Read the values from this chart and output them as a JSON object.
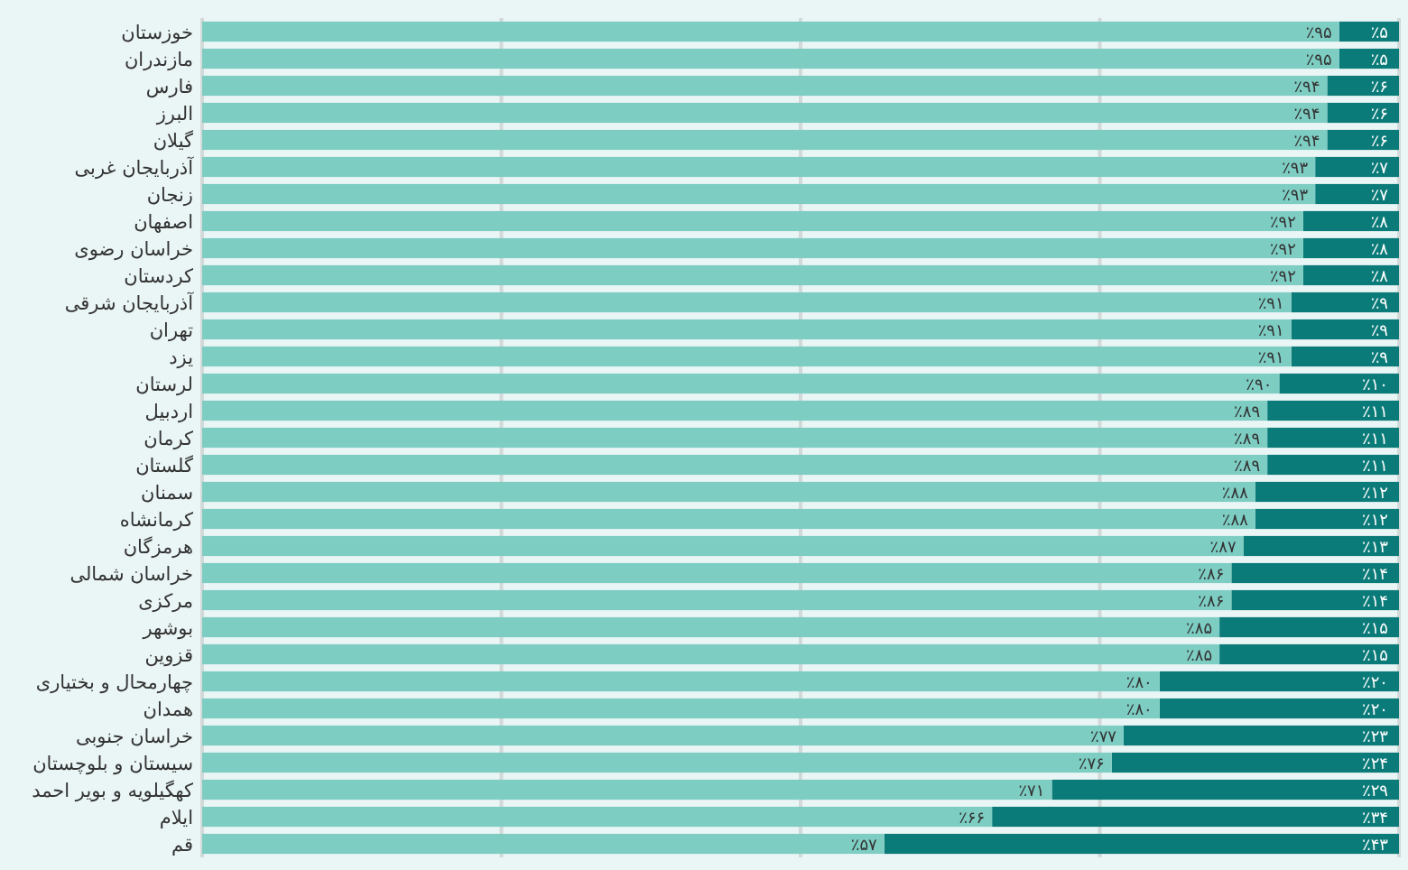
{
  "chart_data": {
    "type": "bar",
    "orientation": "horizontal",
    "stacked": true,
    "categories": [
      "خوزستان",
      "مازندران",
      "فارس",
      "البرز",
      "گیلان",
      "آذربایجان غربی",
      "زنجان",
      "اصفهان",
      "خراسان رضوی",
      "کردستان",
      "آذربایجان شرقی",
      "تهران",
      "یزد",
      "لرستان",
      "اردبیل",
      "کرمان",
      "گلستان",
      "سمنان",
      "کرمانشاه",
      "هرمزگان",
      "خراسان شمالی",
      "مرکزی",
      "بوشهر",
      "قزوین",
      "چهارمحال و بختیاری",
      "همدان",
      "خراسان جنوبی",
      "سیستان و بلوچستان",
      "کهگیلویه و بویر احمد",
      "ایلام",
      "قم"
    ],
    "series": [
      {
        "color": "#0b7b79",
        "values": [
          5,
          5,
          6,
          6,
          6,
          7,
          7,
          8,
          8,
          8,
          9,
          9,
          9,
          10,
          11,
          11,
          11,
          12,
          12,
          13,
          14,
          14,
          15,
          15,
          20,
          20,
          23,
          24,
          29,
          34,
          43
        ],
        "value_labels": [
          "٪۵",
          "٪۵",
          "٪۶",
          "٪۶",
          "٪۶",
          "٪۷",
          "٪۷",
          "٪۸",
          "٪۸",
          "٪۸",
          "٪۹",
          "٪۹",
          "٪۹",
          "٪۱۰",
          "٪۱۱",
          "٪۱۱",
          "٪۱۱",
          "٪۱۲",
          "٪۱۲",
          "٪۱۳",
          "٪۱۴",
          "٪۱۴",
          "٪۱۵",
          "٪۱۵",
          "٪۲۰",
          "٪۲۰",
          "٪۲۳",
          "٪۲۴",
          "٪۲۹",
          "٪۳۴",
          "٪۴۳"
        ]
      },
      {
        "color": "#7dcdc3",
        "values": [
          95,
          95,
          94,
          94,
          94,
          93,
          93,
          92,
          92,
          92,
          91,
          91,
          91,
          90,
          89,
          89,
          89,
          88,
          88,
          87,
          86,
          86,
          85,
          85,
          80,
          80,
          77,
          76,
          71,
          66,
          57
        ],
        "value_labels": [
          "٪۹۵",
          "٪۹۵",
          "٪۹۴",
          "٪۹۴",
          "٪۹۴",
          "٪۹۳",
          "٪۹۳",
          "٪۹۲",
          "٪۹۲",
          "٪۹۲",
          "٪۹۱",
          "٪۹۱",
          "٪۹۱",
          "٪۹۰",
          "٪۸۹",
          "٪۸۹",
          "٪۸۹",
          "٪۸۸",
          "٪۸۸",
          "٪۸۷",
          "٪۸۶",
          "٪۸۶",
          "٪۸۵",
          "٪۸۵",
          "٪۸۰",
          "٪۸۰",
          "٪۷۷",
          "٪۷۶",
          "٪۷۱",
          "٪۶۶",
          "٪۵۷"
        ]
      }
    ],
    "xlim": [
      100,
      0
    ],
    "xticks": [
      {
        "value": 0,
        "label": null
      },
      {
        "value": 25,
        "label": null
      },
      {
        "value": 50,
        "label": null
      },
      {
        "value": 75,
        "label": null
      },
      {
        "value": 100,
        "label": null
      }
    ],
    "grid": "x",
    "tick_labels": "y"
  }
}
